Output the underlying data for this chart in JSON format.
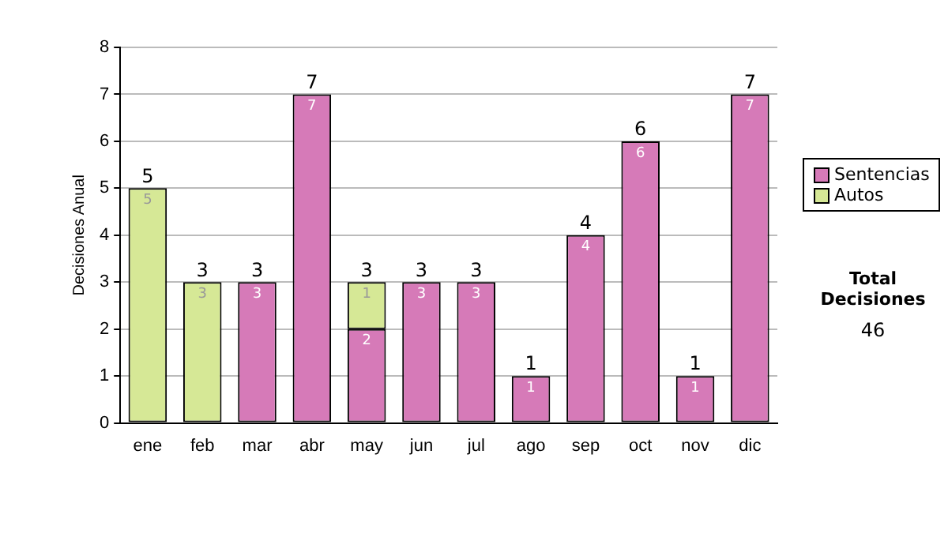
{
  "chart_data": {
    "type": "bar",
    "stacked": true,
    "ylabel": "Decisiones Anual",
    "categories": [
      "ene",
      "feb",
      "mar",
      "abr",
      "may",
      "jun",
      "jul",
      "ago",
      "sep",
      "oct",
      "nov",
      "dic"
    ],
    "series": [
      {
        "name": "Sentencias",
        "color": "#d67ab8",
        "values": [
          null,
          null,
          3,
          7,
          2,
          3,
          3,
          1,
          4,
          6,
          1,
          7
        ]
      },
      {
        "name": "Autos",
        "color": "#d6e896",
        "values": [
          5,
          3,
          null,
          null,
          1,
          null,
          null,
          null,
          null,
          null,
          null,
          null
        ]
      }
    ],
    "ylim": [
      0,
      8
    ],
    "yticks": [
      0,
      1,
      2,
      3,
      4,
      5,
      6,
      7,
      8
    ],
    "grid": "y",
    "legend": "right",
    "data_labels": true,
    "totals": [
      "5",
      "3",
      "3",
      "7",
      "3",
      "3",
      "3",
      "1",
      "4",
      "6",
      "1",
      "7"
    ],
    "annotations": [
      "Total Decisiones",
      "46"
    ]
  }
}
